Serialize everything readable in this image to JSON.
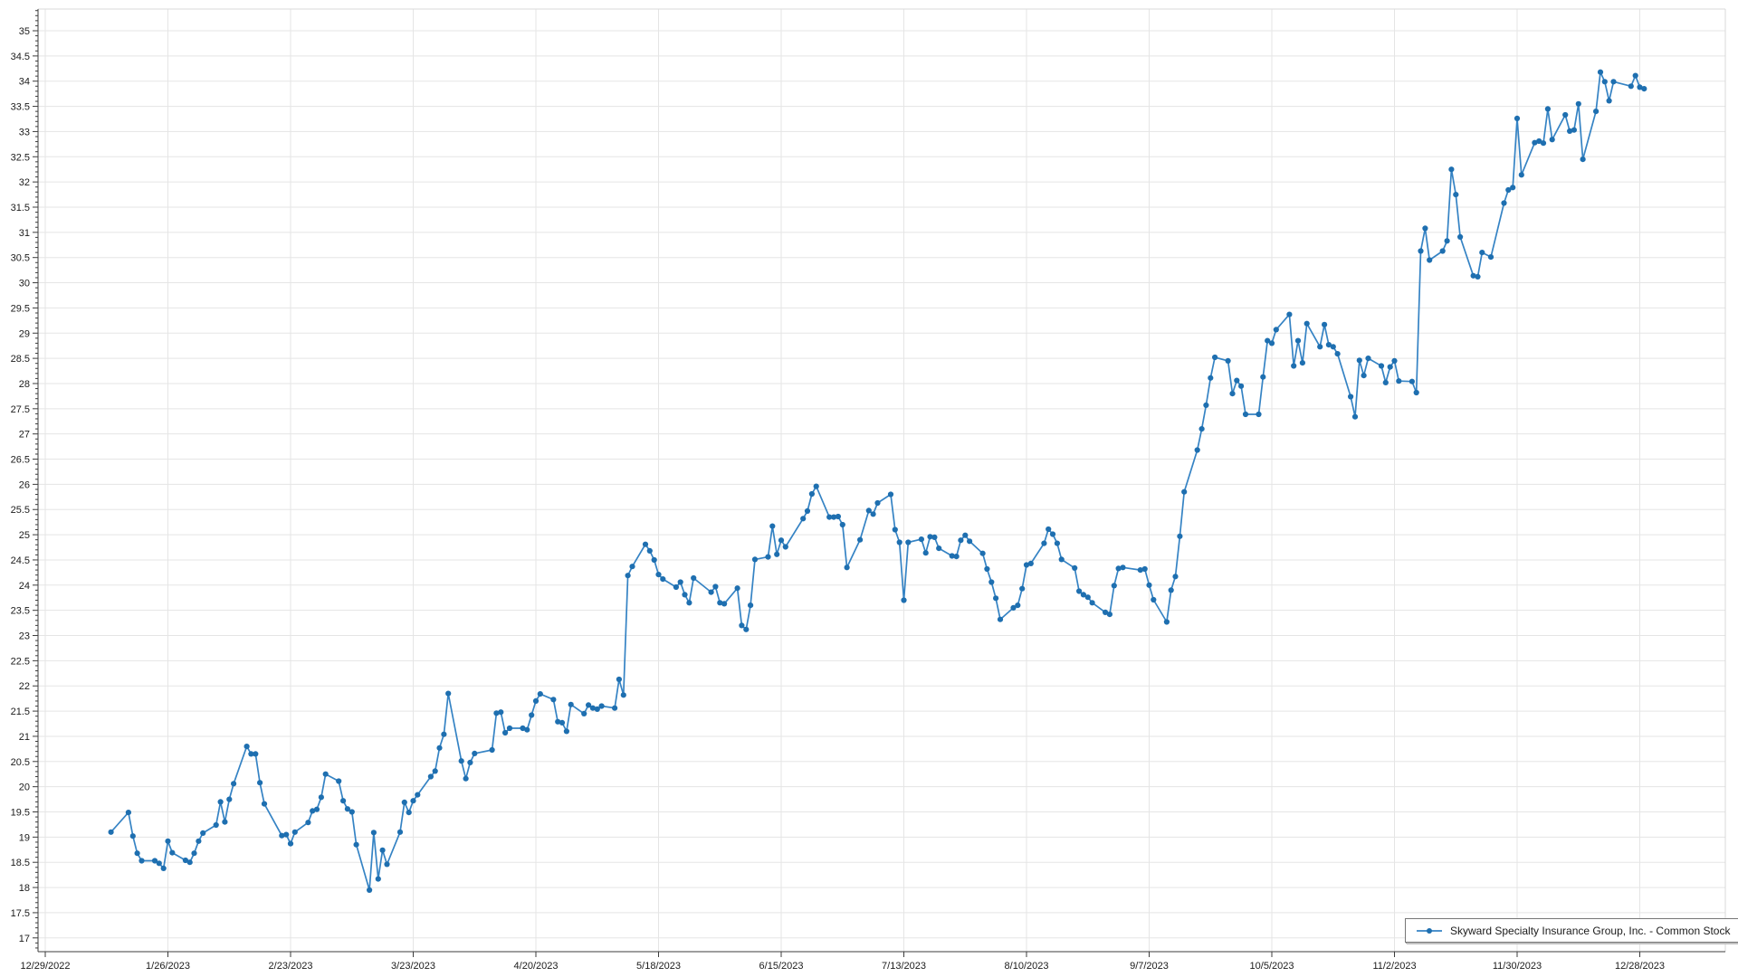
{
  "chart_data": {
    "type": "line",
    "series_name": "Skyward Specialty Insurance Group, Inc. - Common Stock",
    "title": "",
    "xlabel": "",
    "ylabel": "",
    "ylim": [
      17,
      35
    ],
    "y_tick_step": 0.5,
    "y_minor_tick_step": 0.1,
    "grid": true,
    "legend_position": "bottom-right",
    "x_ticks": [
      {
        "label": "12/29/2022",
        "date": "2022-12-29"
      },
      {
        "label": "1/26/2023",
        "date": "2023-01-26"
      },
      {
        "label": "2/23/2023",
        "date": "2023-02-23"
      },
      {
        "label": "3/23/2023",
        "date": "2023-03-23"
      },
      {
        "label": "4/20/2023",
        "date": "2023-04-20"
      },
      {
        "label": "5/18/2023",
        "date": "2023-05-18"
      },
      {
        "label": "6/15/2023",
        "date": "2023-06-15"
      },
      {
        "label": "7/13/2023",
        "date": "2023-07-13"
      },
      {
        "label": "8/10/2023",
        "date": "2023-08-10"
      },
      {
        "label": "9/7/2023",
        "date": "2023-09-07"
      },
      {
        "label": "10/5/2023",
        "date": "2023-10-05"
      },
      {
        "label": "11/2/2023",
        "date": "2023-11-02"
      },
      {
        "label": "11/30/2023",
        "date": "2023-11-30"
      },
      {
        "label": "12/28/2023",
        "date": "2023-12-28"
      }
    ],
    "points": [
      [
        "2023-01-13",
        19.1
      ],
      [
        "2023-01-17",
        19.49
      ],
      [
        "2023-01-18",
        19.02
      ],
      [
        "2023-01-19",
        18.68
      ],
      [
        "2023-01-20",
        18.53
      ],
      [
        "2023-01-23",
        18.53
      ],
      [
        "2023-01-24",
        18.48
      ],
      [
        "2023-01-25",
        18.38
      ],
      [
        "2023-01-26",
        18.92
      ],
      [
        "2023-01-27",
        18.69
      ],
      [
        "2023-01-30",
        18.54
      ],
      [
        "2023-01-31",
        18.5
      ],
      [
        "2023-02-01",
        18.68
      ],
      [
        "2023-02-02",
        18.92
      ],
      [
        "2023-02-03",
        19.08
      ],
      [
        "2023-02-06",
        19.24
      ],
      [
        "2023-02-07",
        19.7
      ],
      [
        "2023-02-08",
        19.3
      ],
      [
        "2023-02-09",
        19.75
      ],
      [
        "2023-02-10",
        20.06
      ],
      [
        "2023-02-13",
        20.8
      ],
      [
        "2023-02-14",
        20.65
      ],
      [
        "2023-02-15",
        20.65
      ],
      [
        "2023-02-16",
        20.08
      ],
      [
        "2023-02-17",
        19.66
      ],
      [
        "2023-02-21",
        19.03
      ],
      [
        "2023-02-22",
        19.05
      ],
      [
        "2023-02-23",
        18.87
      ],
      [
        "2023-02-24",
        19.1
      ],
      [
        "2023-02-27",
        19.29
      ],
      [
        "2023-02-28",
        19.52
      ],
      [
        "2023-03-01",
        19.55
      ],
      [
        "2023-03-02",
        19.79
      ],
      [
        "2023-03-03",
        20.25
      ],
      [
        "2023-03-06",
        20.11
      ],
      [
        "2023-03-07",
        19.72
      ],
      [
        "2023-03-08",
        19.56
      ],
      [
        "2023-03-09",
        19.5
      ],
      [
        "2023-03-10",
        18.85
      ],
      [
        "2023-03-13",
        17.95
      ],
      [
        "2023-03-14",
        19.09
      ],
      [
        "2023-03-15",
        18.17
      ],
      [
        "2023-03-16",
        18.74
      ],
      [
        "2023-03-17",
        18.46
      ],
      [
        "2023-03-20",
        19.1
      ],
      [
        "2023-03-21",
        19.69
      ],
      [
        "2023-03-22",
        19.49
      ],
      [
        "2023-03-23",
        19.72
      ],
      [
        "2023-03-24",
        19.84
      ],
      [
        "2023-03-27",
        20.2
      ],
      [
        "2023-03-28",
        20.31
      ],
      [
        "2023-03-29",
        20.77
      ],
      [
        "2023-03-30",
        21.04
      ],
      [
        "2023-03-31",
        21.85
      ],
      [
        "2023-04-03",
        20.51
      ],
      [
        "2023-04-04",
        20.16
      ],
      [
        "2023-04-05",
        20.48
      ],
      [
        "2023-04-06",
        20.66
      ],
      [
        "2023-04-10",
        20.73
      ],
      [
        "2023-04-11",
        21.46
      ],
      [
        "2023-04-12",
        21.48
      ],
      [
        "2023-04-13",
        21.07
      ],
      [
        "2023-04-14",
        21.16
      ],
      [
        "2023-04-17",
        21.16
      ],
      [
        "2023-04-18",
        21.13
      ],
      [
        "2023-04-19",
        21.42
      ],
      [
        "2023-04-20",
        21.7
      ],
      [
        "2023-04-21",
        21.84
      ],
      [
        "2023-04-24",
        21.73
      ],
      [
        "2023-04-25",
        21.29
      ],
      [
        "2023-04-26",
        21.27
      ],
      [
        "2023-04-27",
        21.1
      ],
      [
        "2023-04-28",
        21.63
      ],
      [
        "2023-05-01",
        21.45
      ],
      [
        "2023-05-02",
        21.62
      ],
      [
        "2023-05-03",
        21.56
      ],
      [
        "2023-05-04",
        21.54
      ],
      [
        "2023-05-05",
        21.6
      ],
      [
        "2023-05-08",
        21.56
      ],
      [
        "2023-05-09",
        22.13
      ],
      [
        "2023-05-10",
        21.82
      ],
      [
        "2023-05-11",
        24.19
      ],
      [
        "2023-05-12",
        24.37
      ],
      [
        "2023-05-15",
        24.81
      ],
      [
        "2023-05-16",
        24.68
      ],
      [
        "2023-05-17",
        24.5
      ],
      [
        "2023-05-18",
        24.21
      ],
      [
        "2023-05-19",
        24.12
      ],
      [
        "2023-05-22",
        23.96
      ],
      [
        "2023-05-23",
        24.06
      ],
      [
        "2023-05-24",
        23.81
      ],
      [
        "2023-05-25",
        23.65
      ],
      [
        "2023-05-26",
        24.14
      ],
      [
        "2023-05-30",
        23.86
      ],
      [
        "2023-05-31",
        23.97
      ],
      [
        "2023-06-01",
        23.65
      ],
      [
        "2023-06-02",
        23.63
      ],
      [
        "2023-06-05",
        23.94
      ],
      [
        "2023-06-06",
        23.2
      ],
      [
        "2023-06-07",
        23.12
      ],
      [
        "2023-06-08",
        23.6
      ],
      [
        "2023-06-09",
        24.51
      ],
      [
        "2023-06-12",
        24.56
      ],
      [
        "2023-06-13",
        25.17
      ],
      [
        "2023-06-14",
        24.61
      ],
      [
        "2023-06-15",
        24.89
      ],
      [
        "2023-06-16",
        24.76
      ],
      [
        "2023-06-20",
        25.32
      ],
      [
        "2023-06-21",
        25.47
      ],
      [
        "2023-06-22",
        25.81
      ],
      [
        "2023-06-23",
        25.96
      ],
      [
        "2023-06-26",
        25.35
      ],
      [
        "2023-06-27",
        25.35
      ],
      [
        "2023-06-28",
        25.36
      ],
      [
        "2023-06-29",
        25.2
      ],
      [
        "2023-06-30",
        24.35
      ],
      [
        "2023-07-03",
        24.9
      ],
      [
        "2023-07-05",
        25.48
      ],
      [
        "2023-07-06",
        25.41
      ],
      [
        "2023-07-07",
        25.63
      ],
      [
        "2023-07-10",
        25.8
      ],
      [
        "2023-07-11",
        25.1
      ],
      [
        "2023-07-12",
        24.85
      ],
      [
        "2023-07-13",
        23.7
      ],
      [
        "2023-07-14",
        24.85
      ],
      [
        "2023-07-17",
        24.91
      ],
      [
        "2023-07-18",
        24.64
      ],
      [
        "2023-07-19",
        24.96
      ],
      [
        "2023-07-20",
        24.95
      ],
      [
        "2023-07-21",
        24.73
      ],
      [
        "2023-07-24",
        24.58
      ],
      [
        "2023-07-25",
        24.57
      ],
      [
        "2023-07-26",
        24.89
      ],
      [
        "2023-07-27",
        24.99
      ],
      [
        "2023-07-28",
        24.87
      ],
      [
        "2023-07-31",
        24.63
      ],
      [
        "2023-08-01",
        24.32
      ],
      [
        "2023-08-02",
        24.06
      ],
      [
        "2023-08-03",
        23.74
      ],
      [
        "2023-08-04",
        23.32
      ],
      [
        "2023-08-07",
        23.55
      ],
      [
        "2023-08-08",
        23.6
      ],
      [
        "2023-08-09",
        23.93
      ],
      [
        "2023-08-10",
        24.4
      ],
      [
        "2023-08-11",
        24.43
      ],
      [
        "2023-08-14",
        24.83
      ],
      [
        "2023-08-15",
        25.11
      ],
      [
        "2023-08-16",
        25.01
      ],
      [
        "2023-08-17",
        24.83
      ],
      [
        "2023-08-18",
        24.51
      ],
      [
        "2023-08-21",
        24.34
      ],
      [
        "2023-08-22",
        23.88
      ],
      [
        "2023-08-23",
        23.81
      ],
      [
        "2023-08-24",
        23.76
      ],
      [
        "2023-08-25",
        23.65
      ],
      [
        "2023-08-28",
        23.46
      ],
      [
        "2023-08-29",
        23.42
      ],
      [
        "2023-08-30",
        23.99
      ],
      [
        "2023-08-31",
        24.33
      ],
      [
        "2023-09-01",
        24.35
      ],
      [
        "2023-09-05",
        24.3
      ],
      [
        "2023-09-06",
        24.32
      ],
      [
        "2023-09-07",
        24.0
      ],
      [
        "2023-09-08",
        23.71
      ],
      [
        "2023-09-11",
        23.27
      ],
      [
        "2023-09-12",
        23.9
      ],
      [
        "2023-09-13",
        24.17
      ],
      [
        "2023-09-14",
        24.97
      ],
      [
        "2023-09-15",
        25.85
      ],
      [
        "2023-09-18",
        26.68
      ],
      [
        "2023-09-19",
        27.1
      ],
      [
        "2023-09-20",
        27.57
      ],
      [
        "2023-09-21",
        28.11
      ],
      [
        "2023-09-22",
        28.52
      ],
      [
        "2023-09-25",
        28.45
      ],
      [
        "2023-09-26",
        27.8
      ],
      [
        "2023-09-27",
        28.06
      ],
      [
        "2023-09-28",
        27.95
      ],
      [
        "2023-09-29",
        27.39
      ],
      [
        "2023-10-02",
        27.39
      ],
      [
        "2023-10-03",
        28.13
      ],
      [
        "2023-10-04",
        28.85
      ],
      [
        "2023-10-05",
        28.8
      ],
      [
        "2023-10-06",
        29.07
      ],
      [
        "2023-10-09",
        29.37
      ],
      [
        "2023-10-10",
        28.35
      ],
      [
        "2023-10-11",
        28.85
      ],
      [
        "2023-10-12",
        28.41
      ],
      [
        "2023-10-13",
        29.19
      ],
      [
        "2023-10-16",
        28.73
      ],
      [
        "2023-10-17",
        29.17
      ],
      [
        "2023-10-18",
        28.77
      ],
      [
        "2023-10-19",
        28.73
      ],
      [
        "2023-10-20",
        28.59
      ],
      [
        "2023-10-23",
        27.74
      ],
      [
        "2023-10-24",
        27.34
      ],
      [
        "2023-10-25",
        28.46
      ],
      [
        "2023-10-26",
        28.16
      ],
      [
        "2023-10-27",
        28.5
      ],
      [
        "2023-10-30",
        28.35
      ],
      [
        "2023-10-31",
        28.02
      ],
      [
        "2023-11-01",
        28.33
      ],
      [
        "2023-11-02",
        28.45
      ],
      [
        "2023-11-03",
        28.05
      ],
      [
        "2023-11-06",
        28.04
      ],
      [
        "2023-11-07",
        27.82
      ],
      [
        "2023-11-08",
        30.63
      ],
      [
        "2023-11-09",
        31.08
      ],
      [
        "2023-11-10",
        30.45
      ],
      [
        "2023-11-13",
        30.63
      ],
      [
        "2023-11-14",
        30.83
      ],
      [
        "2023-11-15",
        32.25
      ],
      [
        "2023-11-16",
        31.75
      ],
      [
        "2023-11-17",
        30.91
      ],
      [
        "2023-11-20",
        30.14
      ],
      [
        "2023-11-21",
        30.12
      ],
      [
        "2023-11-22",
        30.6
      ],
      [
        "2023-11-24",
        30.51
      ],
      [
        "2023-11-27",
        31.58
      ],
      [
        "2023-11-28",
        31.84
      ],
      [
        "2023-11-29",
        31.89
      ],
      [
        "2023-11-30",
        33.26
      ],
      [
        "2023-12-01",
        32.14
      ],
      [
        "2023-12-04",
        32.78
      ],
      [
        "2023-12-05",
        32.81
      ],
      [
        "2023-12-06",
        32.77
      ],
      [
        "2023-12-07",
        33.45
      ],
      [
        "2023-12-08",
        32.84
      ],
      [
        "2023-12-11",
        33.33
      ],
      [
        "2023-12-12",
        33.01
      ],
      [
        "2023-12-13",
        33.03
      ],
      [
        "2023-12-14",
        33.55
      ],
      [
        "2023-12-15",
        32.45
      ],
      [
        "2023-12-18",
        33.4
      ],
      [
        "2023-12-19",
        34.18
      ],
      [
        "2023-12-20",
        33.99
      ],
      [
        "2023-12-21",
        33.61
      ],
      [
        "2023-12-22",
        33.99
      ],
      [
        "2023-12-26",
        33.9
      ],
      [
        "2023-12-27",
        34.11
      ],
      [
        "2023-12-28",
        33.88
      ],
      [
        "2023-12-29",
        33.85
      ]
    ],
    "colors": {
      "line": "#3583c4",
      "marker": "#1e6fb0",
      "grid": "#e5e5e5",
      "axis": "#3c3c3c",
      "frame": "#d9d9d9",
      "label": "#1b1b1b",
      "background": "#ffffff"
    }
  }
}
